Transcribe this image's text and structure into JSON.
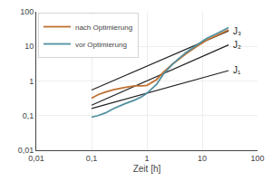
{
  "chart_data": {
    "type": "line",
    "xlabel": "Zeit [h]",
    "log": true,
    "grid": true,
    "legend": "upper left",
    "xlim": [
      0.01,
      100
    ],
    "ylim": [
      0.01,
      100
    ],
    "xticks": [
      {
        "value": 0.01,
        "label": "0,01"
      },
      {
        "value": 0.1,
        "label": "0,1"
      },
      1,
      10,
      100
    ],
    "yticks": [
      {
        "value": 0.01,
        "label": "0,01"
      },
      {
        "value": 0.1,
        "label": "0,1"
      },
      1,
      10,
      100
    ],
    "series": [
      {
        "x": [
          0.1,
          30.0
        ],
        "values": [
          0.55,
          28.0
        ],
        "color": "#222222"
      },
      {
        "x": [
          0.1,
          30.0
        ],
        "values": [
          0.2,
          11.0
        ],
        "color": "#222222"
      },
      {
        "x": [
          0.1,
          30.0
        ],
        "values": [
          0.16,
          2.0
        ],
        "color": "#222222"
      },
      {
        "name": "nach Optimierung",
        "color": "#c07030",
        "x": [
          0.1,
          0.13,
          0.18,
          0.25,
          0.4,
          0.6,
          0.8,
          1.0,
          1.5,
          2.0,
          3.0,
          5.0,
          8.0,
          12.0,
          20.0,
          30.0
        ],
        "values": [
          0.32,
          0.4,
          0.48,
          0.56,
          0.65,
          0.72,
          0.72,
          0.75,
          1.1,
          1.8,
          3.2,
          6.0,
          10.0,
          15.0,
          22.0,
          30.0
        ]
      },
      {
        "name": "vor Optimierung",
        "color": "#5090a0",
        "x": [
          0.1,
          0.13,
          0.18,
          0.25,
          0.4,
          0.6,
          0.8,
          1.0,
          1.5,
          2.0,
          3.0,
          5.0,
          8.0,
          12.0,
          20.0,
          30.0
        ],
        "values": [
          0.09,
          0.1,
          0.12,
          0.16,
          0.22,
          0.28,
          0.35,
          0.44,
          0.8,
          1.6,
          3.2,
          6.5,
          11.0,
          17.0,
          25.0,
          35.0
        ]
      }
    ],
    "annotations": [
      {
        "text": "J₃",
        "x": 30.0,
        "y": 28.0
      },
      {
        "text": "J₂",
        "x": 30.0,
        "y": 11.0
      },
      {
        "text": "J₁",
        "x": 30.0,
        "y": 2.0
      }
    ]
  }
}
